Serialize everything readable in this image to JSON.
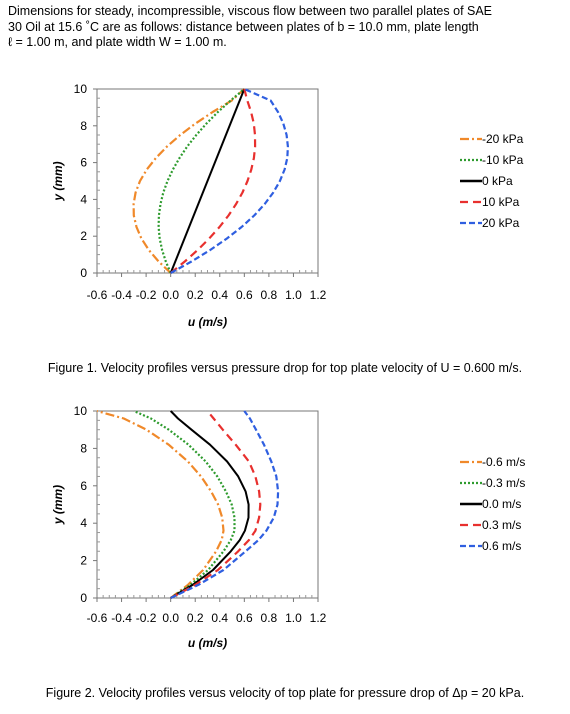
{
  "intro": {
    "line1": "Dimensions for steady, incompressible, viscous flow between two parallel plates of SAE",
    "line2": "30 Oil at 15.6 ˚C are as follows: distance between plates of b = 10.0 mm, plate length",
    "line3": "ℓ = 1.00 m, and plate width W = 1.00 m."
  },
  "captions": {
    "figure1": "Figure 1. Velocity profiles versus pressure drop for top plate velocity of U = 0.600 m/s.",
    "figure2": "Figure 2. Velocity profiles versus velocity of top plate for pressure drop of Δp = 20 kPa."
  },
  "chart_data": [
    {
      "type": "line",
      "xlabel": "u (m/s)",
      "ylabel": "y (mm)",
      "xlim": [
        -0.6,
        1.2
      ],
      "ylim": [
        0,
        10
      ],
      "xticks": [
        "-0.6",
        "-0.4",
        "-0.2",
        "0.0",
        "0.2",
        "0.4",
        "0.6",
        "0.8",
        "1.0",
        "1.2"
      ],
      "yticks": [
        "0",
        "2",
        "4",
        "6",
        "8",
        "10"
      ],
      "grid": false,
      "legend": "right",
      "series": [
        {
          "name": "-20 kPa",
          "color": "#f0892a",
          "dash": "9,3,2,3",
          "x": [
            0.0,
            -0.098,
            -0.178,
            -0.238,
            -0.278,
            -0.3,
            -0.302,
            -0.286,
            -0.25,
            -0.194,
            -0.12,
            -0.03,
            0.078,
            0.202,
            0.342,
            0.498,
            0.6
          ],
          "y": [
            0,
            0.625,
            1.25,
            1.875,
            2.5,
            3.125,
            3.75,
            4.375,
            5.0,
            5.625,
            6.25,
            6.875,
            7.5,
            8.125,
            8.75,
            9.375,
            10
          ]
        },
        {
          "name": "-10 kPa",
          "color": "#2e9b2e",
          "dash": "2,2",
          "x": [
            0.0,
            -0.04,
            -0.07,
            -0.089,
            -0.098,
            -0.096,
            -0.083,
            -0.06,
            -0.026,
            0.018,
            0.072,
            0.135,
            0.209,
            0.292,
            0.385,
            0.488,
            0.6
          ],
          "y": [
            0,
            0.625,
            1.25,
            1.875,
            2.5,
            3.125,
            3.75,
            4.375,
            5.0,
            5.625,
            6.25,
            6.875,
            7.5,
            8.125,
            8.75,
            9.375,
            10
          ]
        },
        {
          "name": "0 kPa",
          "color": "#000000",
          "dash": "",
          "x": [
            0.0,
            0.6
          ],
          "y": [
            0,
            10
          ]
        },
        {
          "name": "10 kPa",
          "color": "#e8302e",
          "dash": "8,5",
          "x": [
            0.0,
            0.115,
            0.22,
            0.314,
            0.398,
            0.471,
            0.533,
            0.585,
            0.626,
            0.657,
            0.678,
            0.688,
            0.687,
            0.677,
            0.655,
            0.624,
            0.6
          ],
          "y": [
            0,
            0.625,
            1.25,
            1.875,
            2.5,
            3.125,
            3.75,
            4.375,
            5.0,
            5.625,
            6.25,
            6.875,
            7.5,
            8.125,
            8.75,
            9.375,
            10
          ]
        },
        {
          "name": "20 kPa",
          "color": "#2f5fe0",
          "dash": "6,3",
          "x": [
            0.0,
            0.17,
            0.322,
            0.458,
            0.578,
            0.68,
            0.766,
            0.836,
            0.89,
            0.928,
            0.95,
            0.955,
            0.944,
            0.917,
            0.874,
            0.814,
            0.6
          ],
          "y": [
            0,
            0.625,
            1.25,
            1.875,
            2.5,
            3.125,
            3.75,
            4.375,
            5.0,
            5.625,
            6.25,
            6.875,
            7.5,
            8.125,
            8.75,
            9.375,
            10
          ]
        }
      ]
    },
    {
      "type": "line",
      "xlabel": "u (m/s)",
      "ylabel": "y (mm)",
      "xlim": [
        -0.6,
        1.2
      ],
      "ylim": [
        0,
        10
      ],
      "xticks": [
        "-0.6",
        "-0.4",
        "-0.2",
        "0.0",
        "0.2",
        "0.4",
        "0.6",
        "0.8",
        "1.0",
        "1.2"
      ],
      "yticks": [
        "0",
        "2",
        "4",
        "6",
        "8",
        "10"
      ],
      "grid": false,
      "legend": "right",
      "series": [
        {
          "name": "-0.6 m/s",
          "color": "#f0892a",
          "dash": "9,3,2,3",
          "x": [
            0.0,
            0.14,
            0.264,
            0.37,
            0.416,
            0.43,
            0.42,
            0.386,
            0.329,
            0.247,
            0.14,
            -0.016,
            -0.197,
            -0.382,
            -0.6
          ],
          "y": [
            0,
            0.7,
            1.5,
            2.5,
            3.1,
            3.6,
            4.3,
            5.0,
            5.7,
            6.5,
            7.3,
            8.2,
            9.0,
            9.6,
            10
          ]
        },
        {
          "name": "-0.3 m/s",
          "color": "#2e9b2e",
          "dash": "2,2",
          "x": [
            0.0,
            0.16,
            0.305,
            0.43,
            0.49,
            0.52,
            0.52,
            0.497,
            0.45,
            0.38,
            0.285,
            0.145,
            -0.015,
            -0.16,
            -0.3
          ],
          "y": [
            0,
            0.7,
            1.5,
            2.5,
            3.1,
            3.6,
            4.3,
            5.0,
            5.7,
            6.5,
            7.3,
            8.2,
            9.0,
            9.6,
            10
          ]
        },
        {
          "name": "0.0 m/s",
          "color": "#000000",
          "dash": "",
          "x": [
            0.0,
            0.179,
            0.345,
            0.49,
            0.563,
            0.605,
            0.634,
            0.635,
            0.61,
            0.55,
            0.46,
            0.32,
            0.17,
            0.06,
            0.0
          ],
          "y": [
            0,
            0.7,
            1.5,
            2.5,
            3.1,
            3.6,
            4.3,
            5.0,
            5.7,
            6.5,
            7.3,
            8.2,
            9.0,
            9.6,
            10
          ]
        },
        {
          "name": "0.3 m/s",
          "color": "#e8302e",
          "dash": "8,5",
          "x": [
            0.0,
            0.2,
            0.385,
            0.55,
            0.638,
            0.69,
            0.72,
            0.73,
            0.72,
            0.69,
            0.637,
            0.53,
            0.425,
            0.35,
            0.3
          ],
          "y": [
            0,
            0.7,
            1.5,
            2.5,
            3.1,
            3.6,
            4.3,
            5.0,
            5.7,
            6.5,
            7.3,
            8.2,
            9.0,
            9.6,
            10
          ]
        },
        {
          "name": "0.6 m/s",
          "color": "#2f5fe0",
          "dash": "6,3",
          "x": [
            0.0,
            0.225,
            0.43,
            0.61,
            0.715,
            0.78,
            0.84,
            0.87,
            0.875,
            0.86,
            0.82,
            0.76,
            0.695,
            0.645,
            0.6
          ],
          "y": [
            0,
            0.7,
            1.5,
            2.5,
            3.1,
            3.6,
            4.3,
            5.0,
            5.7,
            6.5,
            7.3,
            8.2,
            9.0,
            9.6,
            10
          ]
        }
      ]
    }
  ]
}
